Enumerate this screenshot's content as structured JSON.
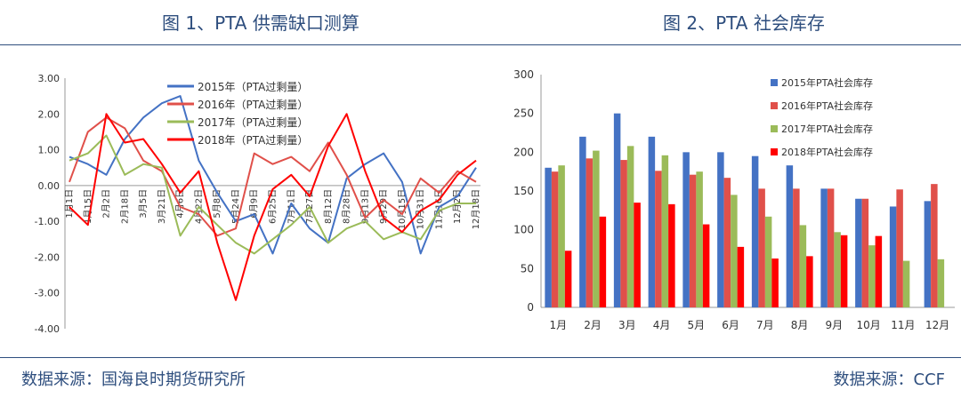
{
  "header": {
    "chart1_title": "图 1、PTA 供需缺口测算",
    "chart2_title": "图 2、PTA 社会库存"
  },
  "footer": {
    "source_left": "数据来源：国海良时期货研究所",
    "source_right": "数据来源：CCF"
  },
  "colors": {
    "blue": "#4472c4",
    "red2016": "#e0504a",
    "green": "#9bbb59",
    "red2018": "#ff0000",
    "title": "#2e4e7e"
  },
  "chart_data": [
    {
      "type": "line",
      "title": "图 1、PTA 供需缺口测算",
      "ylim": [
        -4,
        3
      ],
      "yticks": [
        "3.00",
        "2.00",
        "1.00",
        "0.00",
        "-1.00",
        "-2.00",
        "-3.00",
        "-4.00"
      ],
      "x_ticks": [
        "1月1日",
        "1月15日",
        "2月2日",
        "2月18日",
        "3月5日",
        "3月21日",
        "4月6日",
        "4月22日",
        "5月8日",
        "5月24日",
        "6月9日",
        "6月25日",
        "7月11日",
        "7月27日",
        "8月12日",
        "8月28日",
        "9月13日",
        "9月29日",
        "10月15日",
        "10月31日",
        "11月16日",
        "12月2日",
        "12月18日"
      ],
      "legend_position": "top-center",
      "series": [
        {
          "name": "2015年（PTA过剩量）",
          "color": "#4472c4",
          "values": [
            0.8,
            0.6,
            0.3,
            1.3,
            1.9,
            2.3,
            2.5,
            0.7,
            -0.2,
            -1.0,
            -0.8,
            -1.9,
            -0.5,
            -1.2,
            -1.6,
            0.2,
            0.6,
            0.9,
            0.1,
            -1.9,
            -0.6,
            -0.3,
            0.5
          ]
        },
        {
          "name": "2016年（PTA过剩量）",
          "color": "#e0504a",
          "values": [
            0.1,
            1.5,
            1.9,
            1.6,
            0.7,
            0.4,
            -0.6,
            -0.8,
            -1.4,
            -1.2,
            0.9,
            0.6,
            0.8,
            0.4,
            1.2,
            0.3,
            -0.9,
            -0.4,
            -0.8,
            0.2,
            -0.2,
            0.4,
            0.1
          ]
        },
        {
          "name": "2017年（PTA过剩量）",
          "color": "#9bbb59",
          "values": [
            0.7,
            0.9,
            1.4,
            0.3,
            0.6,
            0.5,
            -1.4,
            -0.6,
            -1.1,
            -1.6,
            -1.9,
            -1.5,
            -1.1,
            -0.6,
            -1.6,
            -1.2,
            -1.0,
            -1.5,
            -1.3,
            -1.5,
            -0.7,
            -0.5,
            -0.5
          ]
        },
        {
          "name": "2018年（PTA过剩量）",
          "color": "#ff0000",
          "values": [
            -0.6,
            -1.1,
            2.0,
            1.2,
            1.3,
            0.6,
            -0.2,
            0.4,
            -1.6,
            -3.2,
            -1.4,
            -0.1,
            0.3,
            -0.3,
            1.1,
            2.0,
            0.4,
            -0.9,
            -1.3,
            -0.7,
            -0.4,
            0.3,
            0.7
          ]
        }
      ]
    },
    {
      "type": "bar",
      "title": "图 2、PTA 社会库存",
      "categories": [
        "1月",
        "2月",
        "3月",
        "4月",
        "5月",
        "6月",
        "7月",
        "8月",
        "9月",
        "10月",
        "11月",
        "12月"
      ],
      "ylim": [
        0,
        300
      ],
      "yticks": [
        "0",
        "50",
        "100",
        "150",
        "200",
        "250",
        "300"
      ],
      "legend_position": "right",
      "series": [
        {
          "name": "2015年PTA社会库存",
          "color": "#4472c4",
          "values": [
            180,
            220,
            250,
            220,
            200,
            200,
            195,
            183,
            153,
            140,
            130,
            137
          ]
        },
        {
          "name": "2016年PTA社会库存",
          "color": "#e0504a",
          "values": [
            175,
            192,
            190,
            176,
            171,
            167,
            153,
            153,
            153,
            140,
            152,
            159
          ]
        },
        {
          "name": "2017年PTA社会库存",
          "color": "#9bbb59",
          "values": [
            183,
            202,
            208,
            196,
            175,
            145,
            117,
            106,
            97,
            80,
            60,
            62
          ]
        },
        {
          "name": "2018年PTA社会库存",
          "color": "#ff0000",
          "values": [
            73,
            117,
            135,
            133,
            107,
            78,
            63,
            66,
            93,
            92,
            null,
            null
          ]
        }
      ]
    }
  ]
}
